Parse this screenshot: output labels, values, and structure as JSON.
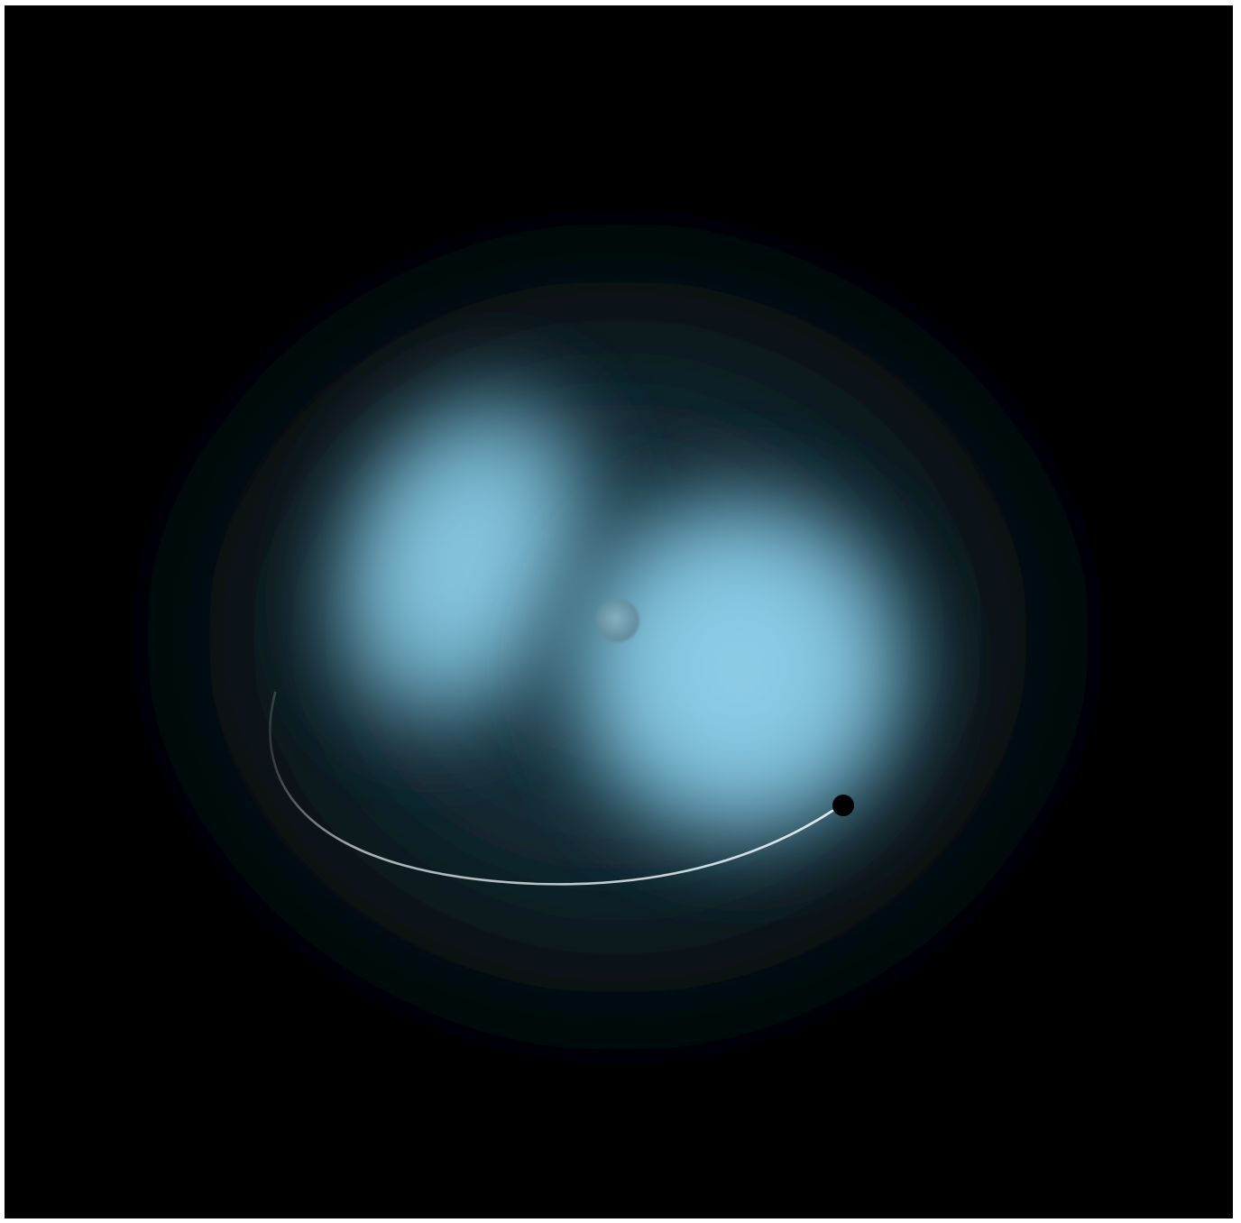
{
  "scene": {
    "background_color": "#000000",
    "outer_border_color": "#ffffff",
    "glow_color": "#8ccbe6",
    "halo_color": "#1a3440",
    "trail_color": "#dce8ee",
    "center_marker_color": "#6f8f9b",
    "endpoint_color": "#000000",
    "elements": [
      "outer-halo",
      "left-glow-lobe",
      "right-glow-lobe",
      "center-marker",
      "orbit-trail",
      "orbit-endpoint"
    ]
  }
}
